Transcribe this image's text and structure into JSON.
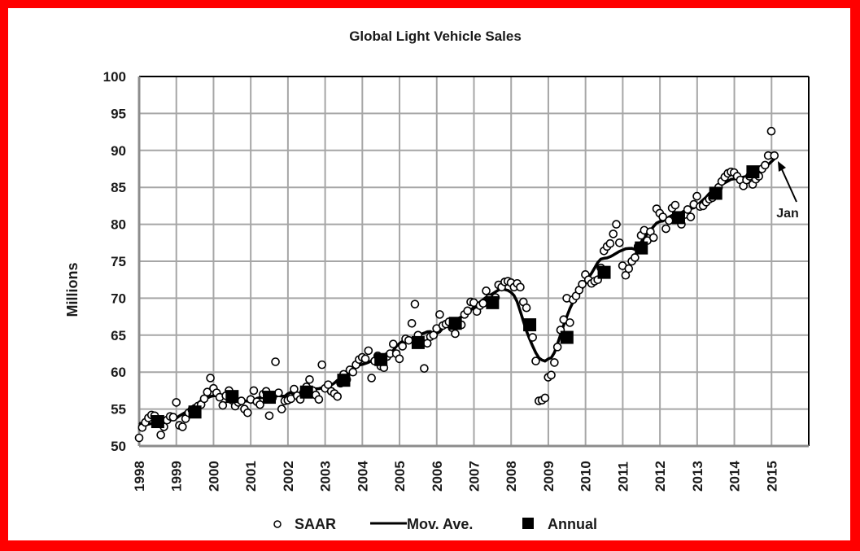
{
  "chart_data": {
    "type": "line",
    "title": "Global Light Vehicle Sales",
    "xlabel": "",
    "ylabel": "Millions",
    "xlim": [
      1998,
      2016
    ],
    "ylim": [
      50,
      100
    ],
    "yticks": [
      50,
      55,
      60,
      65,
      70,
      75,
      80,
      85,
      90,
      95,
      100
    ],
    "xtick_labels": [
      "1998",
      "1999",
      "2000",
      "2001",
      "2002",
      "2003",
      "2004",
      "2005",
      "2006",
      "2007",
      "2008",
      "2009",
      "2010",
      "2011",
      "2012",
      "2013",
      "2014",
      "2015"
    ],
    "grid": true,
    "legend_position": "bottom",
    "annotation": {
      "text": "Jan",
      "points_to_year": 2015.0
    },
    "series": [
      {
        "name": "SAAR",
        "marker": "open-circle",
        "start_year": 1998.0,
        "step_years": 0.0833,
        "values": [
          51.1,
          52.5,
          53.2,
          53.8,
          54.2,
          54.1,
          53.0,
          51.5,
          52.6,
          53.5,
          54.0,
          53.9,
          55.9,
          52.8,
          52.6,
          53.7,
          54.5,
          54.9,
          55.1,
          55.4,
          55.6,
          56.4,
          57.3,
          59.2,
          57.8,
          57.2,
          56.6,
          55.5,
          56.8,
          57.5,
          56.2,
          55.4,
          55.9,
          56.1,
          55.0,
          54.5,
          56.3,
          57.5,
          56.0,
          55.6,
          57.0,
          57.4,
          54.1,
          56.5,
          61.4,
          57.2,
          55.0,
          56.1,
          56.2,
          56.4,
          57.7,
          56.8,
          56.3,
          57.2,
          58.0,
          59.0,
          57.5,
          56.9,
          56.3,
          61.0,
          57.8,
          58.3,
          57.4,
          57.1,
          56.7,
          58.5,
          59.7,
          59.0,
          60.3,
          60.0,
          61.0,
          61.7,
          62.0,
          61.8,
          62.9,
          59.2,
          61.5,
          62.2,
          60.8,
          60.6,
          62.1,
          62.5,
          63.8,
          62.5,
          61.8,
          63.5,
          64.5,
          64.3,
          66.6,
          69.2,
          65.0,
          64.1,
          60.5,
          63.9,
          64.8,
          65.0,
          65.9,
          67.8,
          66.3,
          66.5,
          66.8,
          66.0,
          65.2,
          66.7,
          66.4,
          67.8,
          68.3,
          69.5,
          69.4,
          68.2,
          69.0,
          69.3,
          71.0,
          70.0,
          69.5,
          70.1,
          71.8,
          71.5,
          72.2,
          72.3,
          72.1,
          71.5,
          72.0,
          71.5,
          69.5,
          68.7,
          66.5,
          64.7,
          61.5,
          56.1,
          56.2,
          56.5,
          59.3,
          59.6,
          61.3,
          63.4,
          65.7,
          67.1,
          70.0,
          66.7,
          69.8,
          70.3,
          71.1,
          71.9,
          73.2,
          72.5,
          72.0,
          72.3,
          72.5,
          74.1,
          76.4,
          77.0,
          77.4,
          78.7,
          80.0,
          77.5,
          74.4,
          73.1,
          74.0,
          75.0,
          75.5,
          77.0,
          78.5,
          79.2,
          77.8,
          79.0,
          78.2,
          82.1,
          81.5,
          81.0,
          79.4,
          80.5,
          82.2,
          82.6,
          81.0,
          80.0,
          81.3,
          82.0,
          81.0,
          82.7,
          83.8,
          82.4,
          82.5,
          83.0,
          83.4,
          83.6,
          84.5,
          85.0,
          85.8,
          86.4,
          86.9,
          87.1,
          87.0,
          86.5,
          86.0,
          85.2,
          86.0,
          86.5,
          85.4,
          86.1,
          86.5,
          87.5,
          88.0,
          89.3,
          92.6,
          89.3
        ]
      },
      {
        "name": "Mov. Ave.",
        "marker": "line",
        "description": "12-month moving average of SAAR"
      },
      {
        "name": "Annual",
        "marker": "filled-square",
        "x": [
          1998.5,
          1999.5,
          2000.5,
          2001.5,
          2002.5,
          2003.5,
          2004.5,
          2005.5,
          2006.5,
          2007.5,
          2008.5,
          2009.5,
          2010.5,
          2011.5,
          2012.5,
          2013.5,
          2014.5
        ],
        "values": [
          53.3,
          54.6,
          56.7,
          56.6,
          57.3,
          58.9,
          61.7,
          64.0,
          66.6,
          69.4,
          66.4,
          64.7,
          73.5,
          76.8,
          80.9,
          84.2,
          87.1
        ]
      }
    ]
  },
  "legend": {
    "saar_label": "SAAR",
    "mov_ave_label": "Mov. Ave.",
    "annual_label": "Annual"
  },
  "colors": {
    "frame": "#ff0000",
    "grid": "#a6a6a6",
    "marks": "#000000"
  }
}
